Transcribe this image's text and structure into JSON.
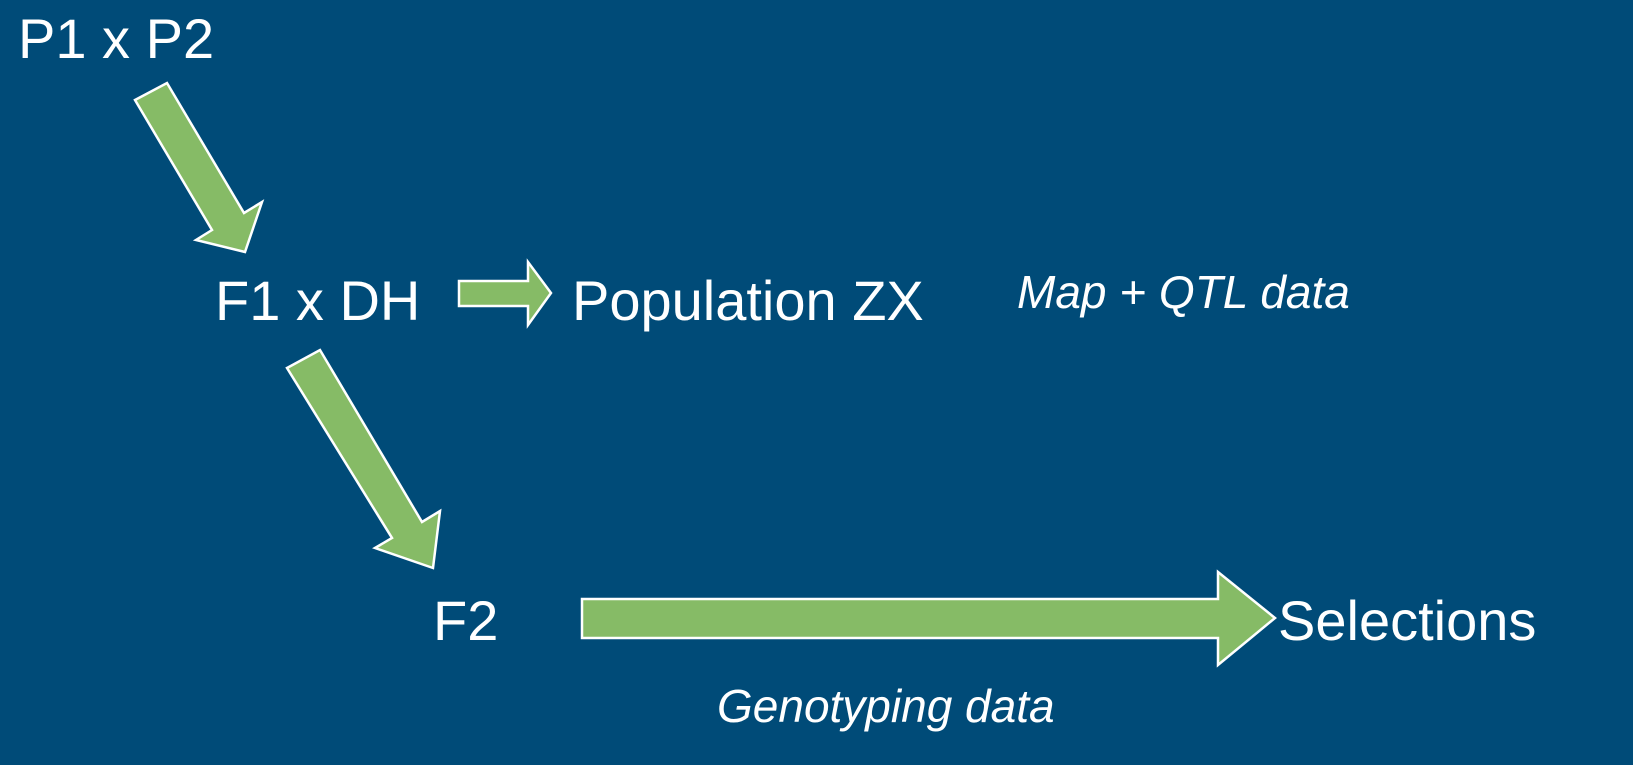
{
  "nodes": [
    {
      "label": "P1 x P2"
    },
    {
      "label": "F1 x DH"
    },
    {
      "label": "Population ZX"
    },
    {
      "label": "F2"
    },
    {
      "label": "Selections"
    }
  ],
  "annotations": [
    {
      "label": "Map + QTL data"
    },
    {
      "label": "Genotyping data"
    }
  ]
}
